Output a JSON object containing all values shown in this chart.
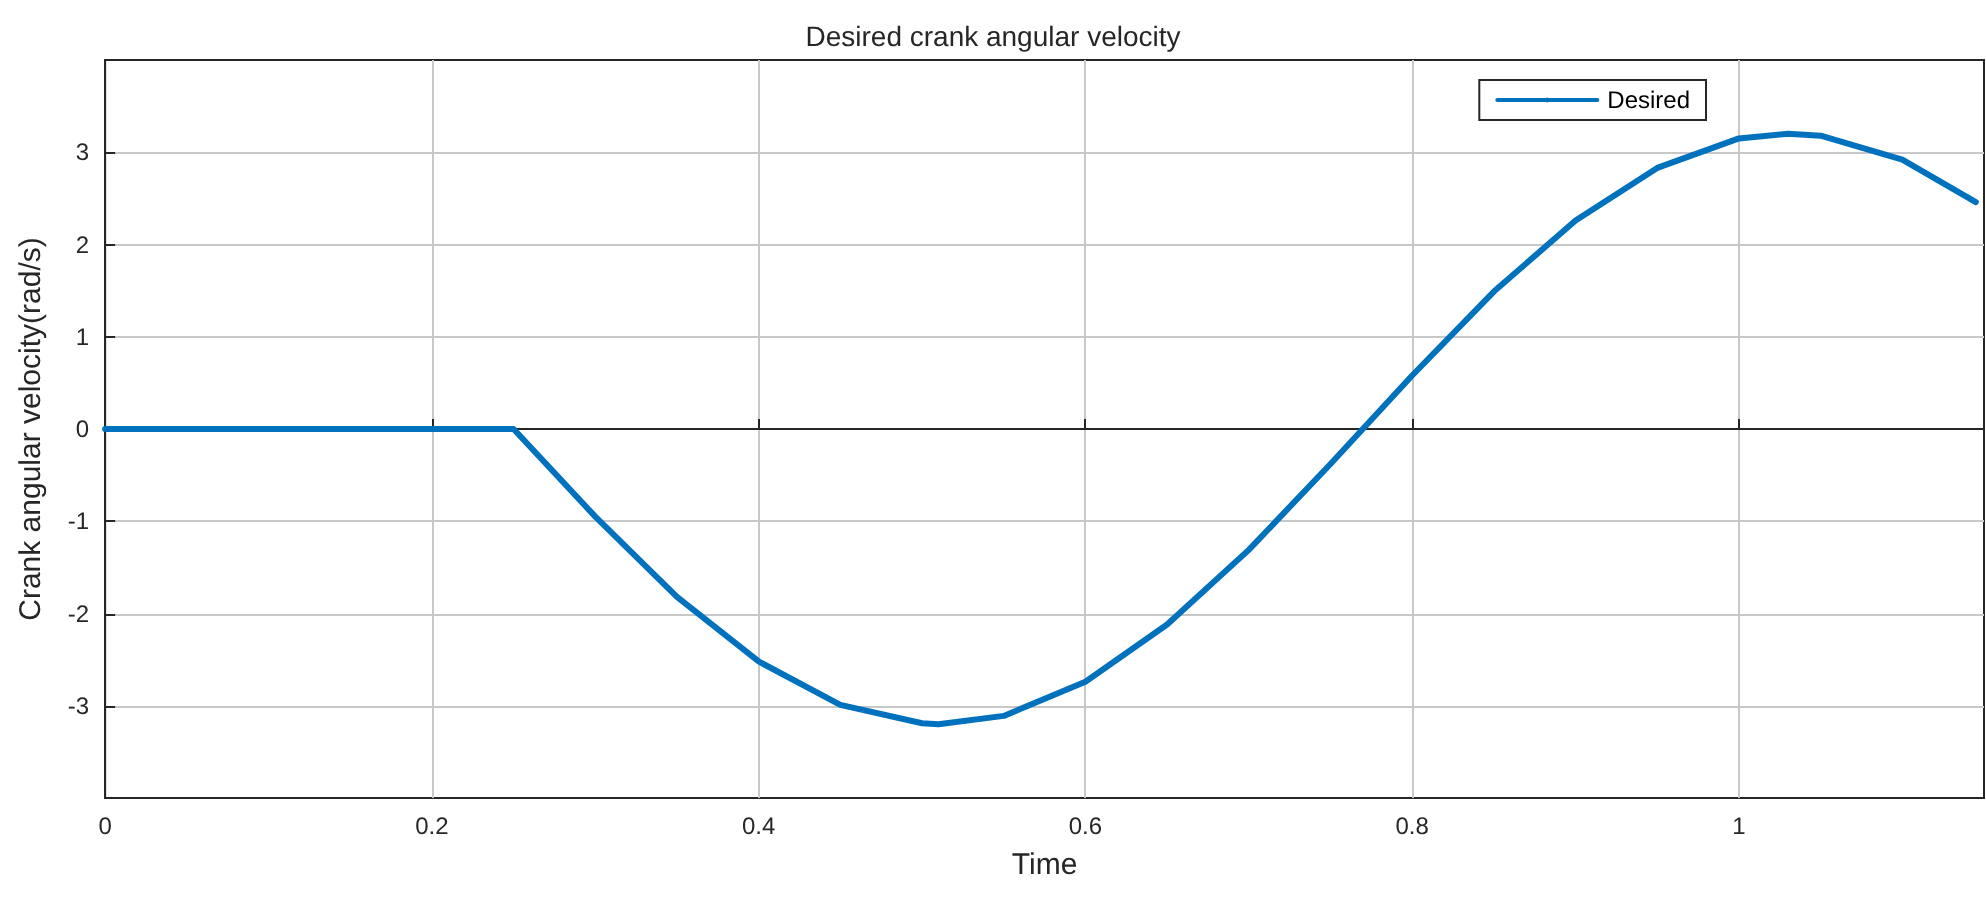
{
  "chart_data": {
    "type": "line",
    "title": "Desired crank angular velocity",
    "xlabel": "Time",
    "ylabel": "Crank angular velocity(rad/s)",
    "xlim": [
      0,
      1.15
    ],
    "xticks": [
      0,
      0.2,
      0.4,
      0.6,
      0.8,
      1
    ],
    "ylim": [
      -4,
      4
    ],
    "yticks": [
      -3,
      -2,
      -1,
      0,
      1,
      2,
      3
    ],
    "grid": true,
    "legend": "top right",
    "marker": "none",
    "line_style": "solid",
    "series": [
      {
        "name": "Desired",
        "color": "#0072bd",
        "x": [
          0,
          0.1,
          0.2,
          0.25,
          0.3,
          0.35,
          0.4,
          0.45,
          0.5,
          0.51,
          0.55,
          0.6,
          0.65,
          0.7,
          0.75,
          0.8,
          0.85,
          0.9,
          0.95,
          1.0,
          1.03,
          1.05,
          1.1,
          1.145
        ],
        "values": [
          0,
          0,
          0,
          0,
          -0.95,
          -1.82,
          -2.52,
          -2.99,
          -3.19,
          -3.2,
          -3.11,
          -2.74,
          -2.12,
          -1.31,
          -0.38,
          0.58,
          1.49,
          2.26,
          2.83,
          3.15,
          3.2,
          3.18,
          2.92,
          2.46
        ]
      }
    ]
  }
}
